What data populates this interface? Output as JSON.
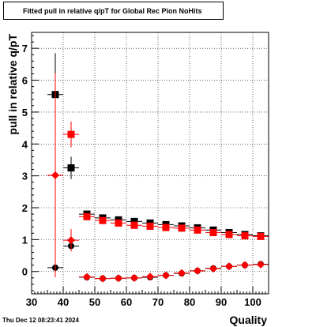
{
  "title": "Fitted pull in relative q/pT for Global Rec Pion NoHits",
  "footer": "Thu Dec 12 08:23:41 2024",
  "chart_data": {
    "type": "scatter",
    "title": "Fitted pull in relative q/pT for Global Rec Pion NoHits",
    "xlabel": "Quality",
    "ylabel": "pull in relative q/pT",
    "xlim": [
      30,
      105
    ],
    "ylim": [
      -0.7,
      7.5
    ],
    "xticks": [
      30,
      40,
      50,
      60,
      70,
      80,
      90,
      100
    ],
    "yticks": [
      0,
      1,
      2,
      3,
      4,
      5,
      6,
      7
    ],
    "grid": true,
    "series": [
      {
        "color": "#000000",
        "marker": "square",
        "x": [
          37.5,
          42.5,
          47.5,
          52.5,
          57.5,
          62.5,
          67.5,
          72.5,
          77.5,
          82.5,
          87.5,
          92.5,
          97.5,
          102.5
        ],
        "y": [
          5.55,
          3.25,
          1.8,
          1.68,
          1.62,
          1.57,
          1.52,
          1.47,
          1.43,
          1.37,
          1.3,
          1.22,
          1.16,
          1.12
        ],
        "yerr": [
          1.3,
          0.35,
          0.07,
          0.06,
          0.05,
          0.05,
          0.05,
          0.05,
          0.05,
          0.05,
          0.05,
          0.05,
          0.05,
          0.05
        ]
      },
      {
        "color": "#ff0000",
        "marker": "square",
        "x": [
          42.5,
          47.5,
          52.5,
          57.5,
          62.5,
          67.5,
          72.5,
          77.5,
          82.5,
          87.5,
          92.5,
          97.5,
          102.5
        ],
        "y": [
          4.3,
          1.72,
          1.6,
          1.52,
          1.45,
          1.42,
          1.38,
          1.36,
          1.3,
          1.22,
          1.16,
          1.12,
          1.1
        ],
        "yerr": [
          0.4,
          0.07,
          0.06,
          0.05,
          0.05,
          0.05,
          0.05,
          0.05,
          0.05,
          0.05,
          0.05,
          0.05,
          0.05
        ]
      },
      {
        "color": "#000000",
        "marker": "circle",
        "x": [
          37.5,
          42.5,
          47.5,
          52.5,
          57.5,
          62.5,
          67.5,
          72.5,
          77.5,
          82.5,
          87.5,
          92.5,
          97.5,
          102.5
        ],
        "y": [
          0.12,
          0.8,
          -0.18,
          -0.22,
          -0.21,
          -0.2,
          -0.18,
          -0.12,
          -0.06,
          0.02,
          0.1,
          0.16,
          0.2,
          0.23
        ],
        "yerr": [
          0.3,
          0.15,
          0.05,
          0.04,
          0.04,
          0.04,
          0.04,
          0.04,
          0.04,
          0.04,
          0.04,
          0.04,
          0.04,
          0.04
        ]
      },
      {
        "color": "#ff0000",
        "marker": "diamond",
        "x": [
          37.5,
          42.5,
          47.5,
          52.5,
          57.5,
          62.5,
          67.5,
          72.5,
          77.5,
          82.5,
          87.5,
          92.5,
          97.5,
          102.5
        ],
        "y": [
          3.02,
          0.98,
          -0.17,
          -0.22,
          -0.21,
          -0.2,
          -0.16,
          -0.12,
          -0.05,
          0.02,
          0.09,
          0.16,
          0.2,
          0.22
        ],
        "yerr": [
          3.2,
          0.35,
          0.05,
          0.04,
          0.04,
          0.04,
          0.04,
          0.04,
          0.04,
          0.04,
          0.04,
          0.04,
          0.04,
          0.04
        ]
      }
    ]
  }
}
